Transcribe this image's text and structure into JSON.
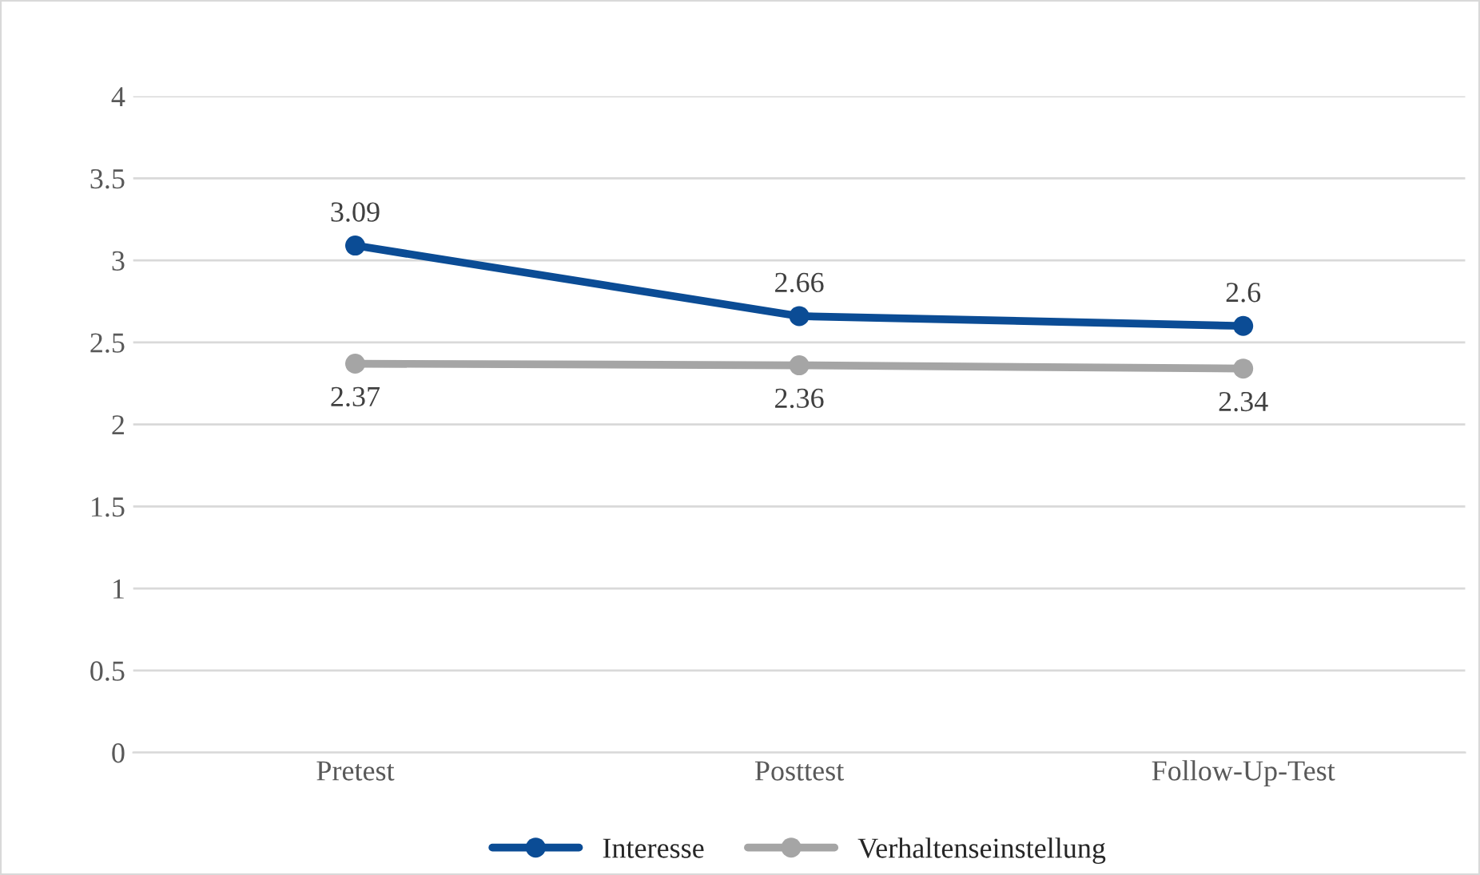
{
  "chart_data": {
    "type": "line",
    "categories": [
      "Pretest",
      "Posttest",
      "Follow-Up-Test"
    ],
    "series": [
      {
        "name": "Interesse",
        "color": "#0b4c95",
        "values": [
          3.09,
          2.66,
          2.6
        ]
      },
      {
        "name": "Verhaltenseinstellung",
        "color": "#a5a5a5",
        "values": [
          2.37,
          2.36,
          2.34
        ]
      }
    ],
    "ylim": [
      0,
      4
    ],
    "yticks": [
      0,
      0.5,
      1,
      1.5,
      2,
      2.5,
      3,
      3.5,
      4
    ],
    "grid": "y",
    "legend": "bottom",
    "marker": "circle",
    "line_style": "solid",
    "data_labels": true
  }
}
